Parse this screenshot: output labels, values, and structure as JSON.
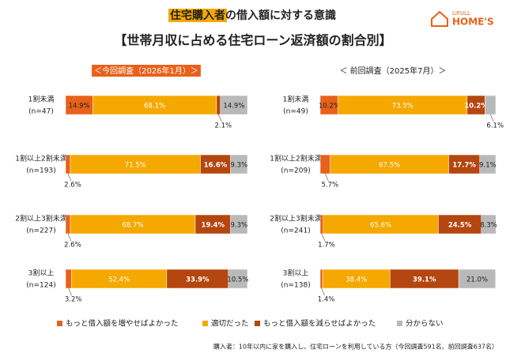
{
  "header": {
    "title_highlight": "住宅購入者",
    "title_rest": "の借入額に対する意識",
    "subtitle": "【世帯月収に占める住宅ローン返済額の割合別】",
    "logo_top": "LIFULL",
    "logo_main": "HOME'S"
  },
  "chart_data": [
    {
      "type": "bar",
      "orientation": "horizontal",
      "stacked": true,
      "subtitle": "＜今回調査（2026年1月）＞",
      "highlight": true,
      "categories": [
        "1割未満",
        "1割以上2割未満",
        "2割以上3割未満",
        "3割以上"
      ],
      "sample_sizes": [
        "(n=47)",
        "(n=193)",
        "(n=227)",
        "(n=124)"
      ],
      "xlim": [
        0,
        100
      ],
      "series": [
        {
          "name": "もっと借入額を増やせばよかった",
          "color": "#e8611a",
          "values": [
            14.9,
            2.6,
            2.6,
            3.2
          ],
          "value_labels": [
            "14.9%",
            "2.6%",
            "2.6%",
            "3.2%"
          ]
        },
        {
          "name": "適切だった",
          "color": "#f5a800",
          "values": [
            68.1,
            71.5,
            68.7,
            52.4
          ],
          "value_labels": [
            "68.1%",
            "71.5%",
            "68.7%",
            "52.4%"
          ]
        },
        {
          "name": "もっと借入額を減らせばよかった",
          "color": "#b5460f",
          "values": [
            2.1,
            16.6,
            19.4,
            33.9
          ],
          "value_labels": [
            "2.1%",
            "16.6%",
            "19.4%",
            "33.9%"
          ]
        },
        {
          "name": "分からない",
          "color": "#b9b9b9",
          "values": [
            14.9,
            9.3,
            9.3,
            10.5
          ],
          "value_labels": [
            "14.9%",
            "9.3%",
            "9.3%",
            "10.5%"
          ]
        }
      ]
    },
    {
      "type": "bar",
      "orientation": "horizontal",
      "stacked": true,
      "subtitle": "＜ 前回調査（2025年7月）＞",
      "highlight": false,
      "categories": [
        "1割未満",
        "1割以上2割未満",
        "2割以上3割未満",
        "3割以上"
      ],
      "sample_sizes": [
        "(n=49)",
        "(n=209)",
        "(n=241)",
        "(n=138)"
      ],
      "xlim": [
        0,
        100
      ],
      "series": [
        {
          "name": "もっと借入額を増やせばよかった",
          "color": "#e8611a",
          "values": [
            10.2,
            5.7,
            1.7,
            1.4
          ],
          "value_labels": [
            "10.2%",
            "5.7%",
            "1.7%",
            "1.4%"
          ]
        },
        {
          "name": "適切だった",
          "color": "#f5a800",
          "values": [
            73.5,
            67.5,
            65.6,
            38.4
          ],
          "value_labels": [
            "73.5%",
            "67.5%",
            "65.6%",
            "38.4%"
          ]
        },
        {
          "name": "もっと借入額を減らせばよかった",
          "color": "#b5460f",
          "values": [
            10.2,
            17.7,
            24.5,
            39.1
          ],
          "value_labels": [
            "10.2%",
            "17.7%",
            "24.5%",
            "39.1%"
          ]
        },
        {
          "name": "分からない",
          "color": "#b9b9b9",
          "values": [
            6.1,
            9.1,
            8.3,
            21
          ],
          "value_labels": [
            "6.1%",
            "9.1%",
            "8.3%",
            "21.0%"
          ]
        }
      ]
    }
  ],
  "note": "購入者：10年以内に家を購入し、住宅ローンを利用している方（今回調査591名、前回調査637名）"
}
